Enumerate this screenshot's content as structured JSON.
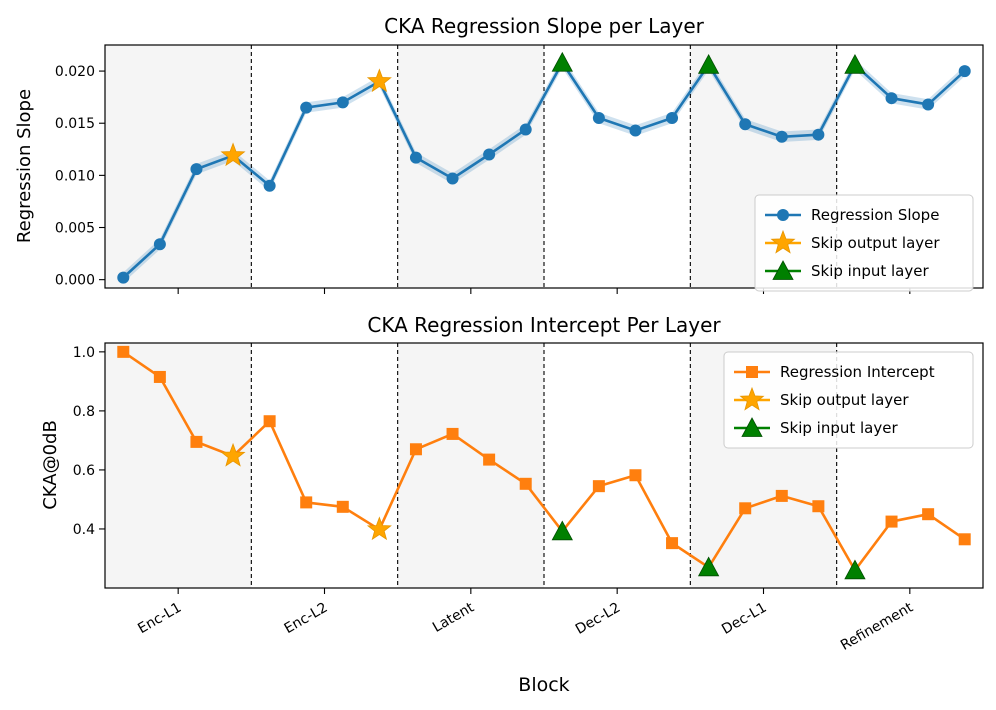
{
  "chart_data": [
    {
      "type": "line",
      "title": "CKA Regression Slope per Layer",
      "xlabel": "",
      "ylabel": "Regression Slope",
      "ylim": [
        -0.0008,
        0.0225
      ],
      "yticks": [
        0.0,
        0.005,
        0.01,
        0.015,
        0.02
      ],
      "ytick_labels": [
        "0.000",
        "0.005",
        "0.010",
        "0.015",
        "0.020"
      ],
      "x": [
        0,
        1,
        2,
        3,
        4,
        5,
        6,
        7,
        8,
        9,
        10,
        11,
        12,
        13,
        14,
        15,
        16,
        17,
        18,
        19,
        20,
        21,
        22,
        23
      ],
      "series": [
        {
          "name": "Regression Slope",
          "color": "#1f77b4",
          "marker": "circle",
          "values": [
            0.0002,
            0.0034,
            0.0106,
            0.0119,
            0.009,
            0.0165,
            0.017,
            0.019,
            0.0117,
            0.0097,
            0.012,
            0.0144,
            0.0208,
            0.0155,
            0.0143,
            0.0155,
            0.0206,
            0.0149,
            0.0137,
            0.0139,
            0.0206,
            0.0174,
            0.0168,
            0.02
          ],
          "band": 0.0005
        }
      ],
      "skip_output": {
        "name": "Skip output layer",
        "color": "#FFA500",
        "marker": "star",
        "x": [
          3,
          7
        ]
      },
      "skip_input": {
        "name": "Skip input layer",
        "color": "#008000",
        "marker": "triangle",
        "x": [
          12,
          16,
          20
        ]
      },
      "legend": "lower-right"
    },
    {
      "type": "line",
      "title": "CKA Regression Intercept Per Layer",
      "xlabel": "Block",
      "ylabel": "CKA@0dB",
      "ylim": [
        0.2,
        1.03
      ],
      "yticks": [
        0.4,
        0.6,
        0.8,
        1.0
      ],
      "ytick_labels": [
        "0.4",
        "0.6",
        "0.8",
        "1.0"
      ],
      "x": [
        0,
        1,
        2,
        3,
        4,
        5,
        6,
        7,
        8,
        9,
        10,
        11,
        12,
        13,
        14,
        15,
        16,
        17,
        18,
        19,
        20,
        21,
        22,
        23
      ],
      "series": [
        {
          "name": "Regression Intercept",
          "color": "#ff7f0e",
          "marker": "square",
          "values": [
            1.0,
            0.915,
            0.695,
            0.647,
            0.765,
            0.49,
            0.475,
            0.398,
            0.67,
            0.722,
            0.635,
            0.553,
            0.392,
            0.545,
            0.582,
            0.352,
            0.27,
            0.47,
            0.512,
            0.477,
            0.26,
            0.425,
            0.45,
            0.365
          ]
        }
      ],
      "skip_output": {
        "name": "Skip output layer",
        "color": "#FFA500",
        "marker": "star",
        "x": [
          3,
          7
        ]
      },
      "skip_input": {
        "name": "Skip input layer",
        "color": "#008000",
        "marker": "triangle",
        "x": [
          12,
          16,
          20
        ]
      },
      "legend": "upper-right"
    }
  ],
  "blocks": {
    "labels": [
      "Enc-L1",
      "Enc-L2",
      "Latent",
      "Dec-L2",
      "Dec-L1",
      "Refinement"
    ],
    "boundaries": [
      3.5,
      7.5,
      11.5,
      15.5,
      19.5
    ],
    "shaded_ranges": [
      [
        -0.5,
        3.5
      ],
      [
        7.5,
        11.5
      ],
      [
        15.5,
        19.5
      ]
    ],
    "shade_color": "#f5f5f5"
  }
}
